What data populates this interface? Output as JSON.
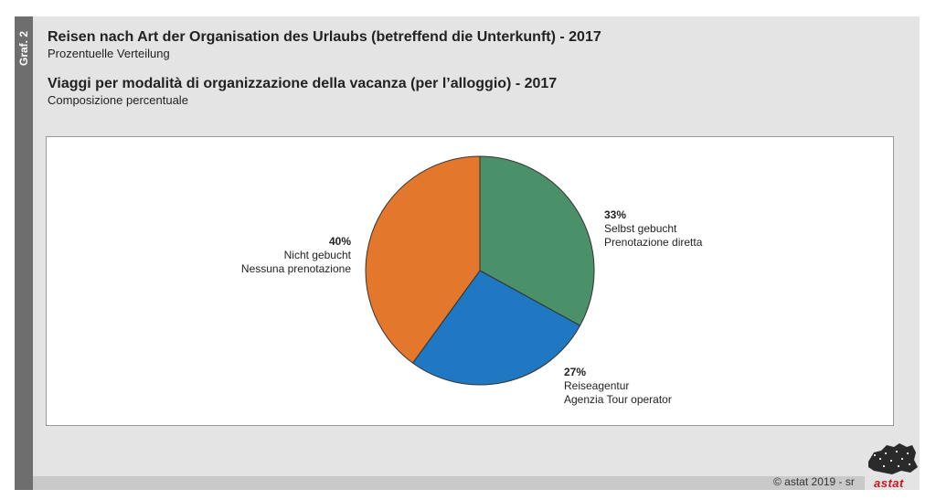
{
  "side_label": "Graf. 2",
  "title_de": "Reisen nach Art der Organisation des Urlaubs (betreffend die Unterkunft) - 2017",
  "subtitle_de": "Prozentuelle Verteilung",
  "title_it": "Viaggi per modalità di organizzazione della vacanza (per l’alloggio) - 2017",
  "subtitle_it": "Composizione percentuale",
  "copyright": "© astat 2019 - sr",
  "logo_text": "astat",
  "colors": {
    "selbst": "#4a9069",
    "reise": "#1f78c1",
    "nicht": "#e3772c"
  },
  "chart_data": {
    "type": "pie",
    "start_angle_deg": 0,
    "direction": "clockwise",
    "slices": [
      {
        "pct_label": "33%",
        "value": 33,
        "label_de": "Selbst gebucht",
        "label_it": "Prenotazione diretta",
        "color": "#4a9069"
      },
      {
        "pct_label": "27%",
        "value": 27,
        "label_de": "Reiseagentur",
        "label_it": "Agenzia Tour operator",
        "color": "#1f78c1"
      },
      {
        "pct_label": "40%",
        "value": 40,
        "label_de": "Nicht gebucht",
        "label_it": "Nessuna prenotazione",
        "color": "#e3772c"
      }
    ]
  }
}
